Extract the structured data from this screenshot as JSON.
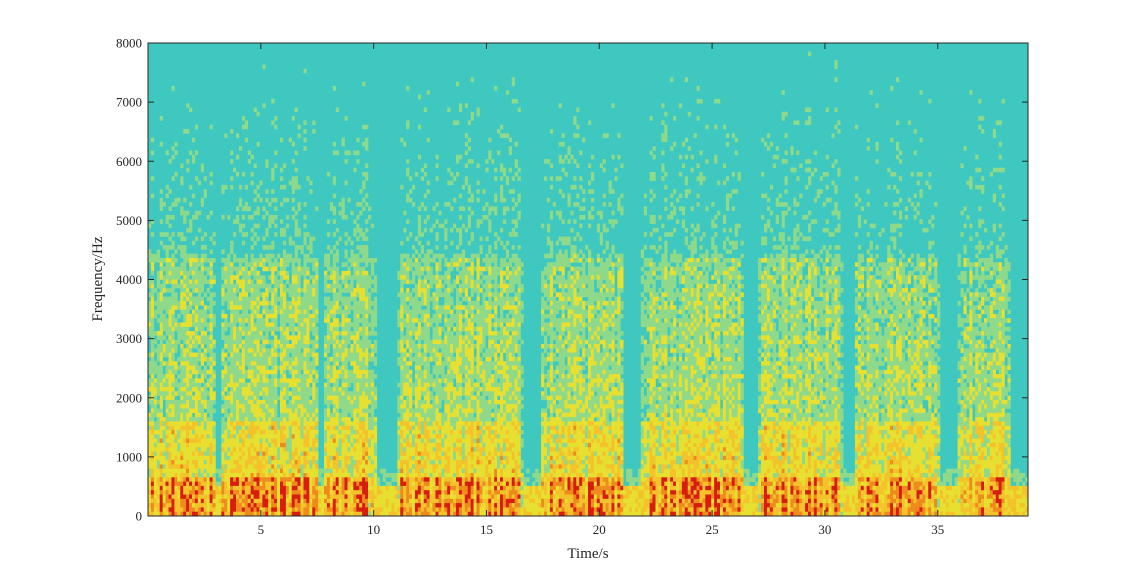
{
  "chart_data": {
    "type": "heatmap",
    "title": "",
    "xlabel": "Time/s",
    "ylabel": "Frequency/Hz",
    "xlim": [
      0,
      39
    ],
    "ylim": [
      0,
      8000
    ],
    "x_ticks": [
      5,
      10,
      15,
      20,
      25,
      30,
      35
    ],
    "y_ticks": [
      0,
      1000,
      2000,
      3000,
      4000,
      5000,
      6000,
      7000,
      8000
    ],
    "grid": false,
    "legend": "none",
    "colormap": "jet",
    "colors": {
      "background": "#3ec8c0",
      "mid": "#e8e030",
      "high": "#f0a020",
      "peak": "#d81c10"
    },
    "silent_intervals_s": [
      [
        7.6,
        7.8
      ],
      [
        10.2,
        11.0
      ],
      [
        16.6,
        17.4
      ],
      [
        21.1,
        21.8
      ],
      [
        26.4,
        27.0
      ],
      [
        30.8,
        31.3
      ],
      [
        35.1,
        35.9
      ],
      [
        38.2,
        39.0
      ]
    ],
    "speech_segments_s": [
      [
        0.0,
        3.0
      ],
      [
        3.2,
        7.6
      ],
      [
        7.8,
        10.2
      ],
      [
        11.0,
        16.6
      ],
      [
        17.4,
        21.1
      ],
      [
        21.8,
        26.4
      ],
      [
        27.0,
        30.8
      ],
      [
        31.3,
        35.1
      ],
      [
        35.9,
        38.2
      ]
    ]
  }
}
